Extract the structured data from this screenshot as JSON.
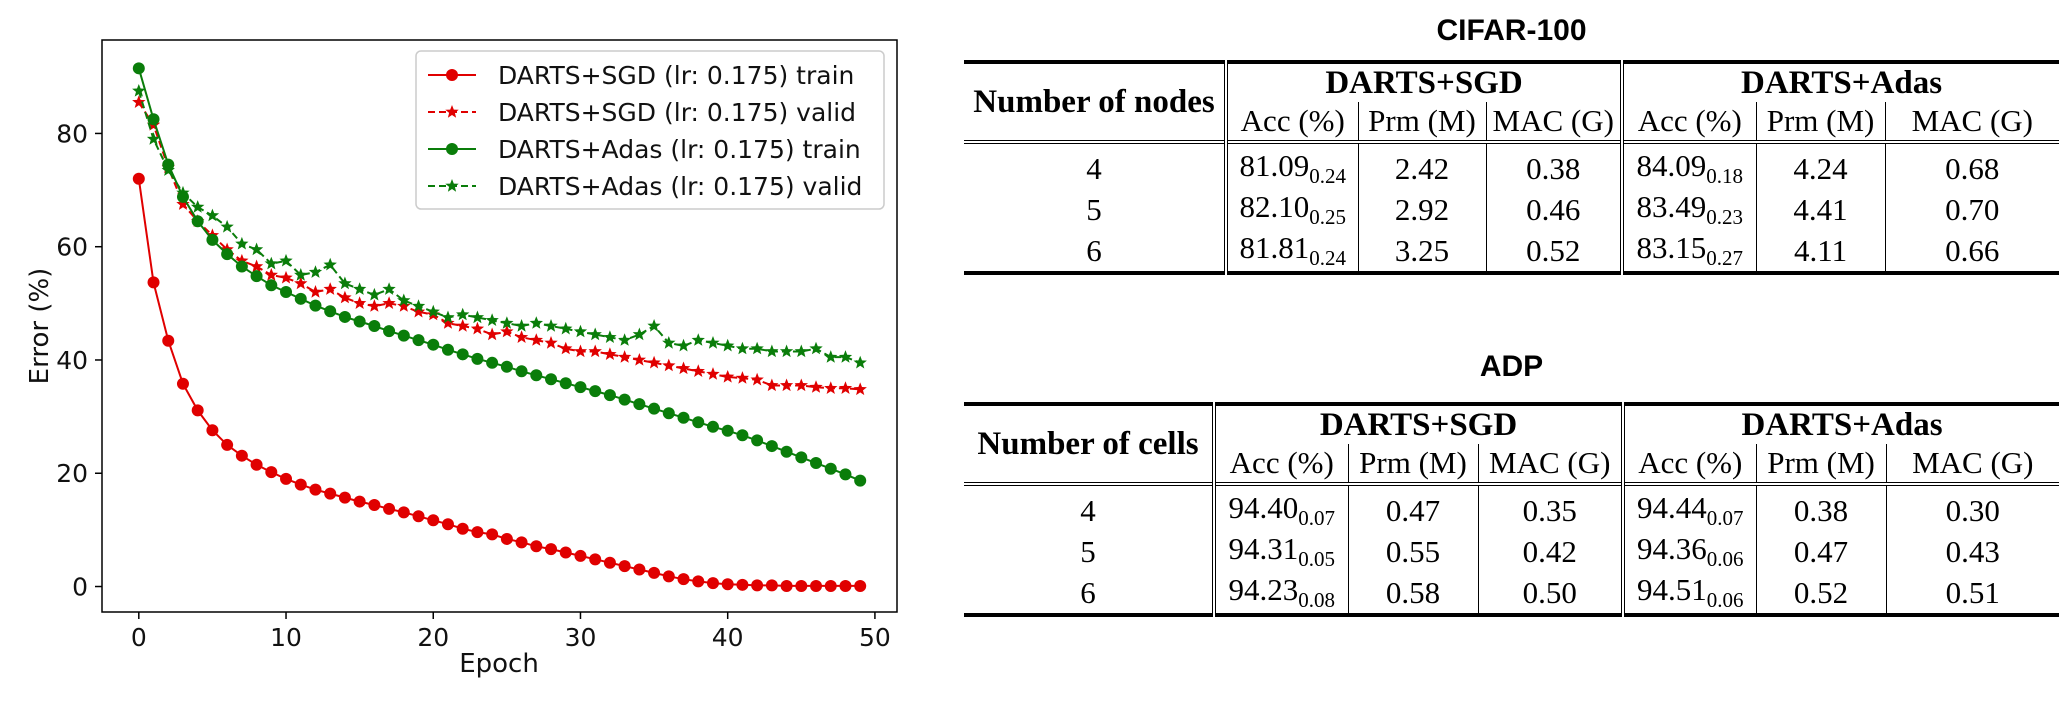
{
  "chart_data": {
    "type": "line",
    "xlabel": "Epoch",
    "ylabel": "Error (%)",
    "xlim": [
      -2.5,
      51.5
    ],
    "ylim": [
      -4.5,
      96.5
    ],
    "xticks": [
      0,
      10,
      20,
      30,
      40,
      50
    ],
    "yticks": [
      0,
      20,
      40,
      60,
      80
    ],
    "grid": false,
    "legend_position": "top-right",
    "x": [
      0,
      1,
      2,
      3,
      4,
      5,
      6,
      7,
      8,
      9,
      10,
      11,
      12,
      13,
      14,
      15,
      16,
      17,
      18,
      19,
      20,
      21,
      22,
      23,
      24,
      25,
      26,
      27,
      28,
      29,
      30,
      31,
      32,
      33,
      34,
      35,
      36,
      37,
      38,
      39,
      40,
      41,
      42,
      43,
      44,
      45,
      46,
      47,
      48,
      49
    ],
    "series": [
      {
        "name": "DARTS+SGD (lr: 0.175) train",
        "color": "#e00000",
        "style": "solid",
        "marker": "circle",
        "values": [
          72.0,
          53.7,
          43.4,
          35.8,
          31.1,
          27.6,
          25.0,
          23.1,
          21.5,
          20.2,
          19.0,
          18.0,
          17.1,
          16.4,
          15.7,
          15.0,
          14.4,
          13.7,
          13.1,
          12.4,
          11.7,
          11.0,
          10.2,
          9.6,
          9.2,
          8.4,
          7.8,
          7.1,
          6.6,
          6.0,
          5.4,
          4.8,
          4.2,
          3.6,
          3.0,
          2.4,
          1.8,
          1.3,
          0.9,
          0.6,
          0.4,
          0.3,
          0.2,
          0.2,
          0.1,
          0.1,
          0.1,
          0.1,
          0.1,
          0.1
        ]
      },
      {
        "name": "DARTS+SGD (lr: 0.175) valid",
        "color": "#e00000",
        "style": "dashed",
        "marker": "star",
        "values": [
          85.5,
          81.5,
          74.0,
          67.5,
          64.5,
          62.0,
          59.5,
          57.5,
          56.5,
          55.0,
          54.5,
          53.5,
          52.0,
          52.5,
          51.0,
          50.0,
          49.5,
          50.0,
          49.5,
          48.5,
          48.0,
          46.5,
          46.0,
          45.5,
          44.5,
          45.0,
          44.0,
          43.5,
          43.0,
          42.0,
          41.5,
          41.5,
          41.0,
          40.5,
          40.0,
          39.5,
          39.0,
          38.5,
          38.0,
          37.5,
          37.0,
          36.8,
          36.5,
          35.5,
          35.5,
          35.5,
          35.2,
          35.0,
          35.0,
          34.8
        ]
      },
      {
        "name": "DARTS+Adas (lr: 0.175) train",
        "color": "#0a7d0a",
        "style": "solid",
        "marker": "circle",
        "values": [
          91.5,
          82.5,
          74.5,
          68.8,
          64.5,
          61.2,
          58.7,
          56.5,
          54.8,
          53.2,
          52.0,
          50.8,
          49.6,
          48.6,
          47.6,
          46.8,
          46.0,
          45.1,
          44.3,
          43.5,
          42.7,
          41.8,
          41.0,
          40.2,
          39.5,
          38.8,
          38.0,
          37.3,
          36.6,
          35.9,
          35.2,
          34.5,
          33.8,
          33.0,
          32.2,
          31.4,
          30.6,
          29.8,
          29.0,
          28.2,
          27.5,
          26.7,
          25.8,
          24.8,
          23.8,
          22.8,
          21.8,
          20.8,
          19.8,
          18.7
        ]
      },
      {
        "name": "DARTS+Adas (lr: 0.175) valid",
        "color": "#0a7d0a",
        "style": "dashed",
        "marker": "star",
        "values": [
          87.5,
          79.0,
          73.5,
          69.5,
          67.0,
          65.5,
          63.5,
          60.5,
          59.5,
          57.0,
          57.5,
          55.0,
          55.5,
          56.8,
          53.5,
          52.5,
          51.5,
          52.5,
          50.5,
          49.5,
          48.5,
          47.5,
          48.0,
          47.5,
          47.0,
          46.5,
          46.0,
          46.5,
          46.0,
          45.5,
          45.0,
          44.5,
          44.0,
          43.5,
          44.5,
          46.0,
          43.0,
          42.5,
          43.5,
          43.0,
          42.5,
          42.0,
          42.0,
          41.5,
          41.5,
          41.5,
          42.0,
          40.5,
          40.5,
          39.5
        ]
      }
    ]
  },
  "tables": [
    {
      "title": "CIFAR-100",
      "row_header": "Number of nodes",
      "groups": [
        "DARTS+SGD",
        "DARTS+Adas"
      ],
      "subcols": [
        "Acc (%)",
        "Prm (M)",
        "MAC (G)",
        "Acc (%)",
        "Prm (M)",
        "MAC (G)"
      ],
      "rows": [
        {
          "key": "4",
          "sgd_acc": "81.09",
          "sgd_acc_sub": "0.24",
          "sgd_prm": "2.42",
          "sgd_mac": "0.38",
          "adas_acc": "84.09",
          "adas_acc_sub": "0.18",
          "adas_prm": "4.24",
          "adas_mac": "0.68"
        },
        {
          "key": "5",
          "sgd_acc": "82.10",
          "sgd_acc_sub": "0.25",
          "sgd_prm": "2.92",
          "sgd_mac": "0.46",
          "adas_acc": "83.49",
          "adas_acc_sub": "0.23",
          "adas_prm": "4.41",
          "adas_mac": "0.70"
        },
        {
          "key": "6",
          "sgd_acc": "81.81",
          "sgd_acc_sub": "0.24",
          "sgd_prm": "3.25",
          "sgd_mac": "0.52",
          "adas_acc": "83.15",
          "adas_acc_sub": "0.27",
          "adas_prm": "4.11",
          "adas_mac": "0.66"
        }
      ]
    },
    {
      "title": "ADP",
      "row_header": "Number of cells",
      "groups": [
        "DARTS+SGD",
        "DARTS+Adas"
      ],
      "subcols": [
        "Acc (%)",
        "Prm (M)",
        "MAC (G)",
        "Acc (%)",
        "Prm (M)",
        "MAC (G)"
      ],
      "rows": [
        {
          "key": "4",
          "sgd_acc": "94.40",
          "sgd_acc_sub": "0.07",
          "sgd_prm": "0.47",
          "sgd_mac": "0.35",
          "adas_acc": "94.44",
          "adas_acc_sub": "0.07",
          "adas_prm": "0.38",
          "adas_mac": "0.30"
        },
        {
          "key": "5",
          "sgd_acc": "94.31",
          "sgd_acc_sub": "0.05",
          "sgd_prm": "0.55",
          "sgd_mac": "0.42",
          "adas_acc": "94.36",
          "adas_acc_sub": "0.06",
          "adas_prm": "0.47",
          "adas_mac": "0.43"
        },
        {
          "key": "6",
          "sgd_acc": "94.23",
          "sgd_acc_sub": "0.08",
          "sgd_prm": "0.58",
          "sgd_mac": "0.50",
          "adas_acc": "94.51",
          "adas_acc_sub": "0.06",
          "adas_prm": "0.52",
          "adas_mac": "0.51"
        }
      ]
    }
  ]
}
